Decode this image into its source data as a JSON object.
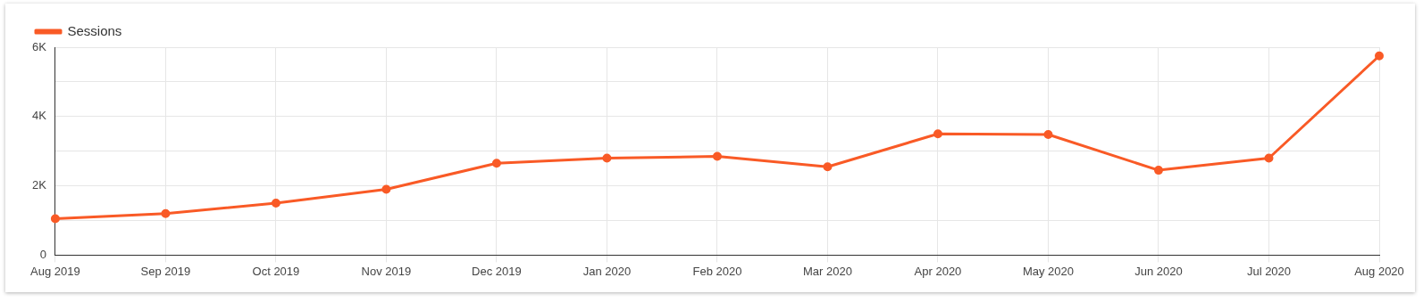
{
  "chart_data": {
    "type": "line",
    "categories": [
      "Aug 2019",
      "Sep 2019",
      "Oct 2019",
      "Nov 2019",
      "Dec 2019",
      "Jan 2020",
      "Feb 2020",
      "Mar 2020",
      "Apr 2020",
      "May 2020",
      "Jun 2020",
      "Jul 2020",
      "Aug 2020"
    ],
    "series": [
      {
        "name": "Sessions",
        "color": "#f95a26",
        "values": [
          1050,
          1200,
          1500,
          1900,
          2650,
          2800,
          2850,
          2550,
          3500,
          3480,
          2450,
          2800,
          5750
        ]
      }
    ],
    "ylim": [
      0,
      6000
    ],
    "yticks": [
      {
        "value": 0,
        "label": "0"
      },
      {
        "value": 1000,
        "label": null
      },
      {
        "value": 2000,
        "label": "2K"
      },
      {
        "value": 3000,
        "label": null
      },
      {
        "value": 4000,
        "label": "4K"
      },
      {
        "value": 5000,
        "label": null
      },
      {
        "value": 6000,
        "label": "6K"
      }
    ],
    "grid": true,
    "legend": "top left",
    "marker": "circle",
    "line_style": "solid"
  }
}
